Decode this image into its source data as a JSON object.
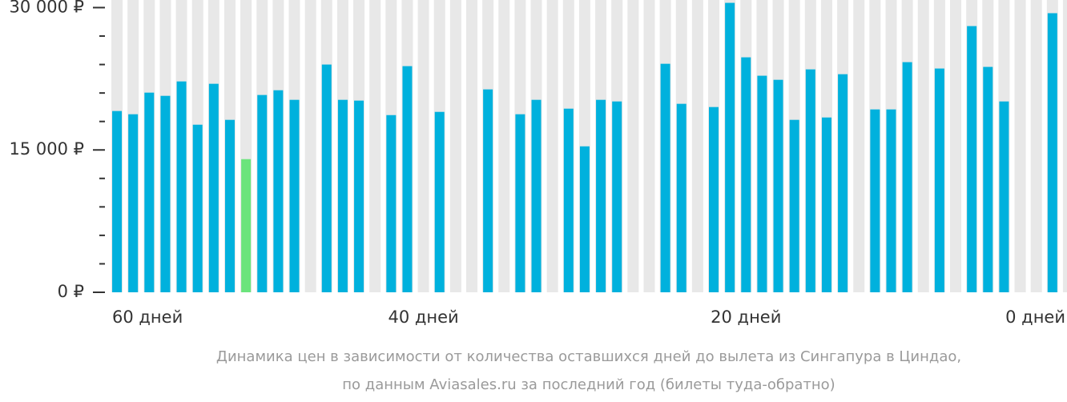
{
  "chart_data": {
    "type": "bar",
    "caption": [
      "Динамика цен в зависимости от количества оставшихся дней до вылета из Сингапура в Циндао,",
      "по данным Aviasales.ru за последний год (билеты туда-обратно)"
    ],
    "x": [
      59,
      58,
      57,
      56,
      55,
      54,
      53,
      52,
      51,
      50,
      49,
      48,
      47,
      46,
      45,
      44,
      43,
      42,
      41,
      40,
      39,
      38,
      37,
      36,
      35,
      34,
      33,
      32,
      31,
      30,
      29,
      28,
      27,
      26,
      25,
      24,
      23,
      22,
      21,
      20,
      19,
      18,
      17,
      16,
      15,
      14,
      13,
      12,
      11,
      10,
      9,
      8,
      7,
      6,
      5,
      4,
      3,
      2,
      1,
      0
    ],
    "values": [
      19100,
      18760,
      21040,
      20700,
      22220,
      17660,
      21970,
      18170,
      14030,
      20790,
      21290,
      20280,
      null,
      24000,
      20280,
      20200,
      null,
      18670,
      23830,
      null,
      19010,
      null,
      null,
      21380,
      null,
      18760,
      20280,
      null,
      19350,
      15380,
      20280,
      20110,
      null,
      null,
      24080,
      19860,
      null,
      19520,
      30500,
      24760,
      22820,
      22390,
      18170,
      23490,
      18420,
      22980,
      null,
      19270,
      19270,
      24250,
      null,
      23580,
      null,
      28050,
      23750,
      20110,
      null,
      null,
      29410,
      null
    ],
    "color": "#00b1dd",
    "lowest_color": "#6be47c",
    "column_color": "#e8e8e8",
    "xlim": [
      59.3,
      -0.3
    ],
    "xticks": [
      {
        "value": 60,
        "label": "60 дней"
      },
      {
        "value": 40,
        "label": "40 дней"
      },
      {
        "value": 20,
        "label": "20 дней"
      },
      {
        "value": 0,
        "label": "0 дней"
      }
    ],
    "ylim": [
      0,
      30800
    ],
    "yticks": [
      {
        "value": 0,
        "label": "0 ₽"
      },
      {
        "value": 15000,
        "label": "15 000 ₽"
      },
      {
        "value": 30000,
        "label": "30 000 ₽"
      }
    ],
    "yminor": [
      3000,
      6000,
      9000,
      12000,
      18000,
      21000,
      24000,
      27000
    ]
  }
}
